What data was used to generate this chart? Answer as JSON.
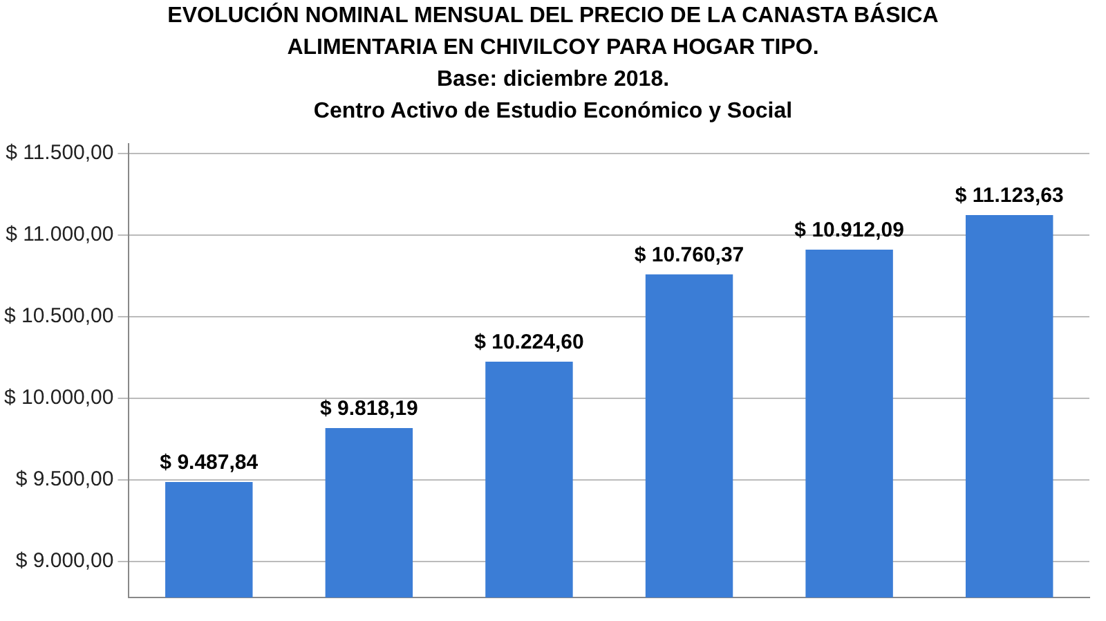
{
  "chart_data": {
    "type": "bar",
    "title": "EVOLUCIÓN NOMINAL MENSUAL DEL PRECIO DE LA CANASTA BÁSICA ALIMENTARIA EN CHIVILCOY PARA HOGAR TIPO.",
    "subtitle": "Base: diciembre 2018.",
    "annotations": [
      "Centro Activo de Estudio Económico y Social"
    ],
    "categories": [
      null,
      null,
      null,
      null,
      null,
      null
    ],
    "values": [
      9487.84,
      9818.19,
      10224.6,
      10760.37,
      10912.09,
      11123.63
    ],
    "value_labels": [
      "$ 9.487,84",
      "$ 9.818,19",
      "$ 10.224,60",
      "$ 10.760,37",
      "$ 10.912,09",
      "$ 11.123,63"
    ],
    "color": "#3b7dd6",
    "ylim": [
      8780,
      11560
    ],
    "yticks": [
      {
        "value": 9000,
        "label": "$ 9.000,00"
      },
      {
        "value": 9500,
        "label": "$ 9.500,00"
      },
      {
        "value": 10000,
        "label": "$ 10.000,00"
      },
      {
        "value": 10500,
        "label": "$ 10.500,00"
      },
      {
        "value": 11000,
        "label": "$ 11.000,00"
      },
      {
        "value": 11500,
        "label": "$ 11.500,00"
      }
    ],
    "grid": "y",
    "legend": false
  }
}
